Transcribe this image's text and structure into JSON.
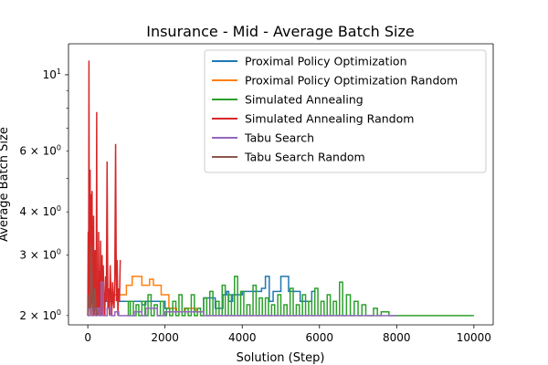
{
  "chart_data": {
    "type": "line",
    "title": "Insurance - Mid - Average Batch Size",
    "xlabel": "Solution (Step)",
    "ylabel": "Average Batch Size",
    "x_range": [
      -500,
      10500
    ],
    "y_range": [
      1.88,
      12.3
    ],
    "y_scale": "log",
    "x_ticks": [
      {
        "value": 0,
        "label": "0"
      },
      {
        "value": 2000,
        "label": "2000"
      },
      {
        "value": 4000,
        "label": "4000"
      },
      {
        "value": 6000,
        "label": "6000"
      },
      {
        "value": 8000,
        "label": "8000"
      },
      {
        "value": 10000,
        "label": "10000"
      }
    ],
    "y_major_ticks": [
      {
        "value": 10,
        "label": "10",
        "sup": "1"
      }
    ],
    "y_minor_ticks": [
      {
        "value": 2,
        "label": "2 × 10",
        "sup": "0"
      },
      {
        "value": 3,
        "label": "3 × 10",
        "sup": "0"
      },
      {
        "value": 4,
        "label": "4 × 10",
        "sup": "0"
      },
      {
        "value": 6,
        "label": "6 × 10",
        "sup": "0"
      }
    ],
    "y_minor_unlabeled": [
      5,
      7,
      8,
      9
    ],
    "grid": false,
    "legend_position": "top-right",
    "series": [
      {
        "name": "Proximal Policy Optimization",
        "color": "#1f77b4",
        "step": true,
        "x": [
          0,
          20,
          60,
          120,
          200,
          400,
          600,
          800,
          1400,
          1500,
          2000,
          2200,
          3000,
          3300,
          3500,
          3600,
          3650,
          3750,
          3800,
          4000,
          4300,
          4500,
          4600,
          4700,
          4800,
          5000,
          5200,
          5500,
          5800,
          5900
        ],
        "y": [
          3.5,
          2.3,
          2.5,
          2.2,
          2.4,
          2.2,
          2.3,
          2.2,
          2.15,
          2.2,
          2.1,
          2.05,
          2.25,
          2.1,
          2.3,
          2.35,
          2.2,
          2.3,
          2.3,
          2.35,
          2.35,
          2.4,
          2.6,
          2.2,
          2.35,
          2.6,
          2.35,
          2.2,
          2.35,
          2.35
        ]
      },
      {
        "name": "Proximal Policy Optimization Random",
        "color": "#ff7f0e",
        "step": true,
        "x": [
          0,
          100,
          300,
          600,
          1000,
          1150,
          1400,
          1600,
          1700,
          1900,
          2100,
          2300,
          2500,
          2800
        ],
        "y": [
          2.3,
          2.4,
          2.3,
          2.3,
          2.45,
          2.6,
          2.45,
          2.55,
          2.45,
          2.3,
          2.1,
          2.05,
          2.1,
          2.05
        ]
      },
      {
        "name": "Simulated Annealing",
        "color": "#2ca02c",
        "step": true,
        "x": [
          1000,
          1050,
          1100,
          1180,
          1250,
          1320,
          1400,
          1480,
          1560,
          1640,
          1720,
          1800,
          1880,
          1960,
          2040,
          2120,
          2200,
          2280,
          2360,
          2440,
          2520,
          2600,
          2680,
          2760,
          2840,
          2920,
          3000,
          3080,
          3160,
          3240,
          3320,
          3400,
          3480,
          3560,
          3640,
          3720,
          3800,
          3880,
          3960,
          4040,
          4120,
          4200,
          4280,
          4360,
          4440,
          4520,
          4600,
          4680,
          4760,
          4840,
          4920,
          5000,
          5080,
          5160,
          5240,
          5320,
          5400,
          5480,
          5560,
          5640,
          5720,
          5800,
          5880,
          5960,
          6040,
          6120,
          6200,
          6280,
          6360,
          6440,
          6520,
          6600,
          6700,
          6800,
          6900,
          7000,
          7100,
          7200,
          7400,
          7500,
          7600,
          7800,
          8000,
          10000
        ],
        "y": [
          2.2,
          2.0,
          2.2,
          2.0,
          2.15,
          2.0,
          2.2,
          2.0,
          2.3,
          2.0,
          2.15,
          2.0,
          2.2,
          2.0,
          2.1,
          2.0,
          2.2,
          2.0,
          2.3,
          2.0,
          2.1,
          2.0,
          2.3,
          2.0,
          2.1,
          2.0,
          2.25,
          2.0,
          2.35,
          2.0,
          2.2,
          2.0,
          2.45,
          2.0,
          2.3,
          2.0,
          2.6,
          2.0,
          2.35,
          2.0,
          2.15,
          2.0,
          2.45,
          2.0,
          2.25,
          2.0,
          2.25,
          2.0,
          2.15,
          2.0,
          2.3,
          2.0,
          2.15,
          2.0,
          2.4,
          2.0,
          2.15,
          2.0,
          2.3,
          2.0,
          2.2,
          2.0,
          2.4,
          2.0,
          2.2,
          2.0,
          2.3,
          2.0,
          2.2,
          2.0,
          2.5,
          2.0,
          2.3,
          2.0,
          2.2,
          2.0,
          2.15,
          2.0,
          2.1,
          2.0,
          2.05,
          2.0,
          2.0,
          2.0
        ]
      },
      {
        "name": "Simulated Annealing Random",
        "color": "#d62728",
        "step": false,
        "x": [
          0,
          10,
          20,
          30,
          40,
          50,
          60,
          70,
          80,
          90,
          100,
          110,
          120,
          130,
          140,
          150,
          160,
          170,
          180,
          190,
          200,
          210,
          220,
          230,
          240,
          250,
          260,
          270,
          280,
          290,
          300,
          310,
          320,
          330,
          340,
          350,
          360,
          370,
          380,
          390,
          400,
          420,
          440,
          460,
          480,
          500,
          520,
          540,
          560,
          580,
          600,
          620,
          640,
          660,
          680,
          700,
          720,
          740,
          760,
          780,
          800,
          820,
          840
        ],
        "y": [
          2.0,
          3.5,
          2.2,
          11.0,
          2.1,
          2.5,
          5.3,
          2.2,
          4.5,
          2.0,
          2.8,
          4.6,
          2.2,
          3.2,
          2.0,
          3.9,
          2.1,
          2.6,
          2.0,
          3.1,
          2.2,
          2.0,
          2.5,
          7.8,
          2.0,
          2.4,
          2.2,
          2.0,
          3.5,
          2.1,
          2.7,
          2.0,
          2.3,
          3.3,
          2.0,
          2.5,
          2.2,
          3.0,
          2.0,
          2.4,
          2.8,
          2.2,
          2.0,
          2.6,
          2.2,
          5.6,
          2.1,
          2.4,
          2.0,
          2.8,
          2.3,
          2.0,
          2.5,
          2.2,
          2.1,
          2.6,
          6.3,
          2.2,
          2.9,
          2.0,
          2.4,
          2.2,
          2.9
        ]
      },
      {
        "name": "Tabu Search",
        "color": "#9467bd",
        "step": true,
        "x": [
          0,
          50,
          100,
          150,
          200,
          250,
          300,
          350,
          400,
          500,
          600,
          700,
          800,
          1000,
          1200,
          1400,
          1500,
          1800,
          2000,
          3000,
          5000,
          7000,
          8000
        ],
        "y": [
          2.0,
          2.1,
          2.0,
          2.1,
          2.0,
          2.1,
          2.0,
          2.5,
          2.0,
          2.1,
          2.0,
          2.05,
          2.0,
          2.0,
          2.05,
          2.0,
          2.1,
          2.0,
          2.05,
          2.0,
          2.0,
          2.0,
          2.0
        ]
      },
      {
        "name": "Tabu Search Random",
        "color": "#8c564b",
        "step": false,
        "x": [
          0,
          30,
          60,
          90,
          120,
          150,
          180,
          210,
          240
        ],
        "y": [
          2.0,
          2.3,
          2.1,
          3.2,
          2.2,
          2.0,
          2.4,
          2.1,
          2.0
        ]
      }
    ]
  }
}
